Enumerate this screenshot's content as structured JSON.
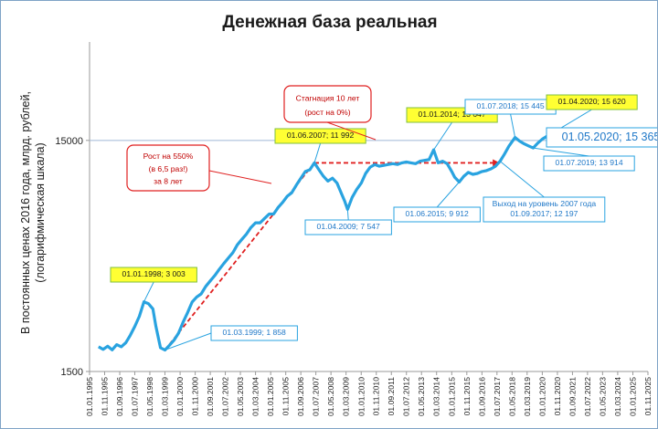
{
  "chart_data": {
    "type": "line",
    "title": "Денежная база реальная",
    "ylabel": "В постоянных ценах 2016 года, млрд. рублей, (логарифмическая шкала)",
    "ylabel_lines": [
      "В постоянных ценах 2016 года, млрд. рублей,",
      "(логарифмическая шкала)"
    ],
    "yscale": "log",
    "ylim": [
      1500,
      40000
    ],
    "yticks": [
      "15000",
      "1500"
    ],
    "xlim": [
      "1995-01-01",
      "2025-11-01"
    ],
    "xticks": [
      "01.01.1995",
      "01.11.1995",
      "01.09.1996",
      "01.07.1997",
      "01.05.1998",
      "01.03.1999",
      "01.01.2000",
      "01.11.2000",
      "01.09.2001",
      "01.07.2002",
      "01.05.2003",
      "01.03.2004",
      "01.01.2005",
      "01.11.2005",
      "01.09.2006",
      "01.07.2007",
      "01.05.2008",
      "01.03.2009",
      "01.01.2010",
      "01.11.2010",
      "01.09.2011",
      "01.07.2012",
      "01.05.2013",
      "01.03.2014",
      "01.01.2015",
      "01.11.2015",
      "01.09.2016",
      "01.07.2017",
      "01.05.2018",
      "01.03.2019",
      "01.01.2020",
      "01.11.2020",
      "01.09.2021",
      "01.07.2022",
      "01.05.2023",
      "01.03.2024",
      "01.01.2025",
      "01.11.2025"
    ],
    "grid": false,
    "line_color": "#29a3e0",
    "series": [
      {
        "points": [
          [
            "1995-07-01",
            1920
          ],
          [
            "1995-10-01",
            1870
          ],
          [
            "1996-01-01",
            1930
          ],
          [
            "1996-04-01",
            1860
          ],
          [
            "1996-07-01",
            1960
          ],
          [
            "1996-10-01",
            1920
          ],
          [
            "1997-01-01",
            2000
          ],
          [
            "1997-04-01",
            2150
          ],
          [
            "1997-07-01",
            2350
          ],
          [
            "1997-10-01",
            2600
          ],
          [
            "1998-01-01",
            3003
          ],
          [
            "1998-04-01",
            2950
          ],
          [
            "1998-07-01",
            2800
          ],
          [
            "1998-09-01",
            2350
          ],
          [
            "1998-12-01",
            1900
          ],
          [
            "1999-03-01",
            1858
          ],
          [
            "1999-06-01",
            1950
          ],
          [
            "1999-09-01",
            2050
          ],
          [
            "1999-12-01",
            2200
          ],
          [
            "2000-03-01",
            2450
          ],
          [
            "2000-06-01",
            2700
          ],
          [
            "2000-09-01",
            3000
          ],
          [
            "2000-12-01",
            3150
          ],
          [
            "2001-03-01",
            3250
          ],
          [
            "2001-06-01",
            3500
          ],
          [
            "2001-09-01",
            3700
          ],
          [
            "2001-12-01",
            3900
          ],
          [
            "2002-03-01",
            4150
          ],
          [
            "2002-06-01",
            4400
          ],
          [
            "2002-09-01",
            4650
          ],
          [
            "2002-12-01",
            4900
          ],
          [
            "2003-03-01",
            5300
          ],
          [
            "2003-06-01",
            5600
          ],
          [
            "2003-09-01",
            5900
          ],
          [
            "2003-12-01",
            6300
          ],
          [
            "2004-03-01",
            6600
          ],
          [
            "2004-06-01",
            6600
          ],
          [
            "2004-09-01",
            6900
          ],
          [
            "2004-12-01",
            7200
          ],
          [
            "2005-03-01",
            7200
          ],
          [
            "2005-06-01",
            7700
          ],
          [
            "2005-09-01",
            8100
          ],
          [
            "2005-12-01",
            8600
          ],
          [
            "2006-03-01",
            8900
          ],
          [
            "2006-06-01",
            9600
          ],
          [
            "2006-09-01",
            10300
          ],
          [
            "2006-12-01",
            11000
          ],
          [
            "2007-03-01",
            11200
          ],
          [
            "2007-06-01",
            11992
          ],
          [
            "2007-09-01",
            11200
          ],
          [
            "2007-12-01",
            10500
          ],
          [
            "2008-03-01",
            10000
          ],
          [
            "2008-06-01",
            10300
          ],
          [
            "2008-09-01",
            9800
          ],
          [
            "2008-12-01",
            8800
          ],
          [
            "2009-02-01",
            8200
          ],
          [
            "2009-04-01",
            7547
          ],
          [
            "2009-07-01",
            8500
          ],
          [
            "2009-10-01",
            9200
          ],
          [
            "2010-01-01",
            9800
          ],
          [
            "2010-04-01",
            10800
          ],
          [
            "2010-07-01",
            11500
          ],
          [
            "2010-10-01",
            11800
          ],
          [
            "2011-01-01",
            11600
          ],
          [
            "2011-04-01",
            11700
          ],
          [
            "2011-07-01",
            11800
          ],
          [
            "2011-10-01",
            11900
          ],
          [
            "2012-01-01",
            11800
          ],
          [
            "2012-04-01",
            12000
          ],
          [
            "2012-07-01",
            12100
          ],
          [
            "2012-10-01",
            12000
          ],
          [
            "2013-01-01",
            11900
          ],
          [
            "2013-04-01",
            12200
          ],
          [
            "2013-07-01",
            12300
          ],
          [
            "2013-10-01",
            12400
          ],
          [
            "2014-01-01",
            13647
          ],
          [
            "2014-04-01",
            12000
          ],
          [
            "2014-07-01",
            12200
          ],
          [
            "2014-10-01",
            11900
          ],
          [
            "2015-01-01",
            11000
          ],
          [
            "2015-03-01",
            10400
          ],
          [
            "2015-06-01",
            9912
          ],
          [
            "2015-09-01",
            10500
          ],
          [
            "2015-12-01",
            10900
          ],
          [
            "2016-03-01",
            10700
          ],
          [
            "2016-06-01",
            10800
          ],
          [
            "2016-09-01",
            11000
          ],
          [
            "2016-12-01",
            11100
          ],
          [
            "2017-03-01",
            11300
          ],
          [
            "2017-06-01",
            11600
          ],
          [
            "2017-09-01",
            12197
          ],
          [
            "2017-12-01",
            13100
          ],
          [
            "2018-03-01",
            14200
          ],
          [
            "2018-07-01",
            15445
          ],
          [
            "2018-10-01",
            14900
          ],
          [
            "2019-01-01",
            14500
          ],
          [
            "2019-04-01",
            14200
          ],
          [
            "2019-07-01",
            13914
          ],
          [
            "2019-10-01",
            14600
          ],
          [
            "2020-01-01",
            15200
          ],
          [
            "2020-04-01",
            15620
          ],
          [
            "2020-05-01",
            15365
          ]
        ]
      }
    ],
    "trend_lines": [
      {
        "color": "#e02020",
        "dash": true,
        "from": [
          "1999-03-01",
          1858
        ],
        "to": [
          "2007-06-01",
          11992
        ]
      },
      {
        "color": "#e02020",
        "dash": true,
        "from": [
          "2007-06-01",
          11992
        ],
        "to": [
          "2017-09-01",
          11992
        ]
      }
    ],
    "callouts": [
      {
        "id": "c1",
        "text": "01.01.1998;  3 003",
        "style": "yellow",
        "at": [
          "1998-01-01",
          3003
        ]
      },
      {
        "id": "c2",
        "text": "01.03.1999;  1 858",
        "style": "blue",
        "at": [
          "1999-03-01",
          1858
        ]
      },
      {
        "id": "c3",
        "text": "01.06.2007;  11 992",
        "style": "yellow",
        "at": [
          "2007-06-01",
          11992
        ]
      },
      {
        "id": "c4",
        "text": "01.04.2009;  7 547",
        "style": "blue",
        "at": [
          "2009-04-01",
          7547
        ]
      },
      {
        "id": "c5",
        "text": "01.01.2014;  13 647",
        "style": "yellow",
        "at": [
          "2014-01-01",
          13647
        ]
      },
      {
        "id": "c6",
        "text": "01.06.2015;  9 912",
        "style": "blue",
        "at": [
          "2015-06-01",
          9912
        ]
      },
      {
        "id": "c7",
        "text": "01.07.2018;  15 445",
        "style": "blue",
        "at": [
          "2018-07-01",
          15445
        ]
      },
      {
        "id": "c8",
        "text": "01.04.2020;  15 620",
        "style": "yellow",
        "at": [
          "2020-04-01",
          15620
        ]
      },
      {
        "id": "c9",
        "text": "01.07.2019;  13 914",
        "style": "blue",
        "at": [
          "2019-07-01",
          13914
        ]
      },
      {
        "id": "c10",
        "text": "01.05.2020;  15 365",
        "style": "big",
        "at": [
          "2020-05-01",
          15365
        ]
      },
      {
        "id": "c11",
        "text": [
          "Выход на уровень 2007 года",
          "01.09.2017;  12 197"
        ],
        "style": "blue",
        "at": [
          "2017-09-01",
          12197
        ]
      }
    ],
    "notes": [
      {
        "id": "n1",
        "lines": [
          "Рост на 550%",
          "(в 6,5 раз!)",
          "за 8 лет"
        ]
      },
      {
        "id": "n2",
        "lines": [
          "Стагнация 10 лет",
          "(рост на 0%)"
        ]
      }
    ]
  }
}
